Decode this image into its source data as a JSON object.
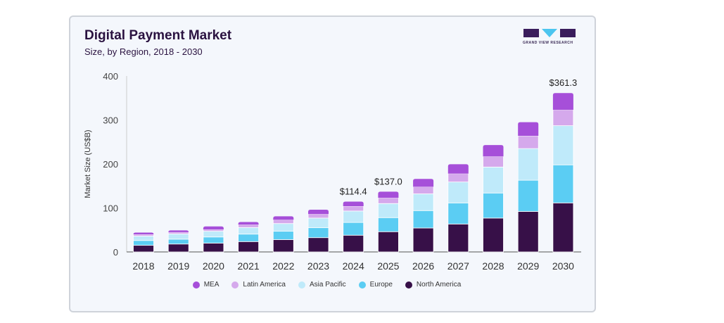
{
  "header": {
    "title": "Digital Payment Market",
    "subtitle": "Size, by Region, 2018 - 2030",
    "logo_text": "GRAND VIEW RESEARCH"
  },
  "chart_data": {
    "type": "bar",
    "stacked": true,
    "title": "Digital Payment Market",
    "subtitle": "Size, by Region, 2018 - 2030",
    "xlabel": "",
    "ylabel": "Market Size (US$B)",
    "ylim": [
      0,
      400
    ],
    "yticks": [
      "0",
      "100",
      "200",
      "300",
      "400"
    ],
    "grid": false,
    "legend_position": "bottom",
    "categories": [
      "2018",
      "2019",
      "2020",
      "2021",
      "2022",
      "2023",
      "2024",
      "2025",
      "2026",
      "2027",
      "2028",
      "2029",
      "2030"
    ],
    "series": [
      {
        "name": "North America",
        "color": "#371048",
        "values": [
          15,
          18,
          20,
          23.5,
          28,
          32.5,
          38,
          46,
          54.4,
          63.5,
          77,
          92,
          111.5
        ]
      },
      {
        "name": "Europe",
        "color": "#5bcdf3",
        "values": [
          11,
          11,
          14,
          17,
          19,
          22.5,
          29,
          32,
          39.6,
          48,
          57,
          71,
          86.5
        ]
      },
      {
        "name": "Asia Pacific",
        "color": "#bfeafa",
        "values": [
          10,
          12,
          13,
          15,
          17.5,
          22,
          26,
          32,
          38,
          47.5,
          59,
          72,
          89
        ]
      },
      {
        "name": "Latin America",
        "color": "#d5a9ec",
        "values": [
          4,
          4,
          4,
          6.5,
          8.5,
          9,
          11,
          13,
          16,
          19,
          24,
          29,
          36
        ]
      },
      {
        "name": "MEA",
        "color": "#a64fd9",
        "values": [
          4,
          4,
          7,
          6,
          8,
          10,
          10.4,
          14,
          18,
          21.5,
          26,
          31,
          38.3
        ]
      }
    ],
    "annotations": [
      {
        "category": "2024",
        "label": "$114.4"
      },
      {
        "category": "2025",
        "label": "$137.0"
      },
      {
        "category": "2030",
        "label": "$361.3"
      }
    ],
    "legend_order": [
      "MEA",
      "Latin America",
      "Asia Pacific",
      "Europe",
      "North America"
    ]
  }
}
